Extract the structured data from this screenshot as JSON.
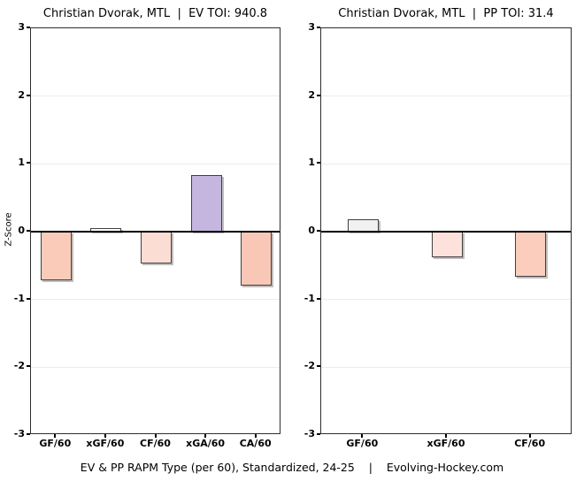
{
  "figure": {
    "background": "#ffffff",
    "panel_border_color": "#2e2e2e",
    "gridline_color": "#ececec",
    "zero_line_color": "#000000",
    "bar_border_color": "#404040"
  },
  "footer": {
    "text": "EV & PP RAPM Type (per 60), Standardized, 24-25    |    Evolving-Hockey.com"
  },
  "chart_data": [
    {
      "type": "bar",
      "title": "Christian Dvorak, MTL  |  EV TOI: 940.8",
      "player": "Christian Dvorak",
      "team": "MTL",
      "toi_label": "EV TOI",
      "toi_value": 940.8,
      "ylabel": "Z-Score",
      "xlabel": "",
      "ylim": [
        -3,
        3
      ],
      "yticks": [
        3,
        2,
        1,
        0,
        -1,
        -2,
        -3
      ],
      "grid": true,
      "legend": false,
      "categories": [
        "GF/60",
        "xGF/60",
        "CF/60",
        "xGA/60",
        "CA/60"
      ],
      "values": [
        -0.72,
        0.05,
        -0.47,
        0.83,
        -0.8
      ],
      "bar_colors": [
        "#FACBB9",
        "#FFFFFF",
        "#FCDDD4",
        "#C5B6DF",
        "#F9C7B6"
      ]
    },
    {
      "type": "bar",
      "title": "Christian Dvorak, MTL  |  PP TOI: 31.4",
      "player": "Christian Dvorak",
      "team": "MTL",
      "toi_label": "PP TOI",
      "toi_value": 31.4,
      "ylabel": "",
      "xlabel": "",
      "ylim": [
        -3,
        3
      ],
      "yticks": [
        3,
        2,
        1,
        0,
        -1,
        -2,
        -3
      ],
      "grid": true,
      "legend": false,
      "categories": [
        "GF/60",
        "xGF/60",
        "CF/60"
      ],
      "values": [
        0.18,
        -0.38,
        -0.66
      ],
      "bar_colors": [
        "#F1F1F1",
        "#FDE2DB",
        "#FACDBD"
      ]
    }
  ]
}
